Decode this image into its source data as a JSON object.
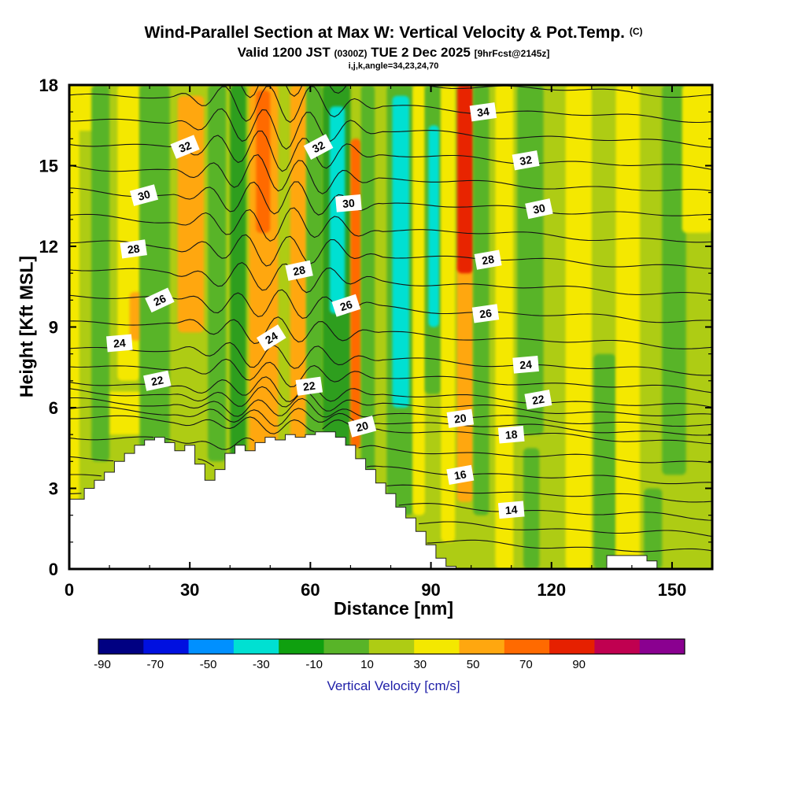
{
  "header": {
    "title": "Wind-Parallel Section at Max W: Vertical Velocity & Pot.Temp.",
    "title_unit": "(C)",
    "valid": "Valid 1200 JST",
    "valid_z": "(0300Z)",
    "date": "TUE 2 Dec 2025",
    "fcst": "[9hrFcst@2145z]",
    "ijk": "i,j,k,angle=34,23,24,70"
  },
  "chart_data": {
    "type": "heatmap",
    "title": "Wind-Parallel Section at Max W: Vertical Velocity & Pot.Temp. (C)",
    "subtitle": "Valid 1200 JST (0300Z) TUE 2 Dec 2025 [9hrFcst@2145z]",
    "xlabel": "Distance [nm]",
    "ylabel": "Height [Kft MSL]",
    "xlim": [
      0,
      160
    ],
    "ylim": [
      0,
      18
    ],
    "x_ticks": [
      0,
      30,
      60,
      90,
      120,
      150
    ],
    "y_ticks": [
      0,
      3,
      6,
      9,
      12,
      15,
      18
    ],
    "fill_field": "vertical velocity",
    "contour_field": "potential temperature (C), 1 C interval",
    "colorbar": {
      "label": "Vertical Velocity [cm/s]",
      "label_color": "#2020A8",
      "ticks": [
        -90,
        -70,
        -50,
        -30,
        -10,
        10,
        30,
        50,
        70,
        90
      ],
      "colors": [
        "#000082",
        "#0010E0",
        "#0090FF",
        "#00E0D2",
        "#0FA00F",
        "#58B428",
        "#AECC14",
        "#F4E800",
        "#FFA70F",
        "#FF6A00",
        "#E62000",
        "#C00050",
        "#8A0090"
      ]
    },
    "background": "#AECC14",
    "palette": {
      "yellow": "#F4E800",
      "green": "#58B428",
      "dkgreen": "#2E9E1E",
      "cyan": "#00E0D2",
      "orange": "#FFA70F",
      "redorange": "#FF6A00",
      "red": "#E82400"
    },
    "bands": [
      [
        0,
        2.5,
        2.5,
        18,
        "yellow"
      ],
      [
        0,
        9,
        16.3,
        18,
        "yellow"
      ],
      [
        6,
        20,
        5,
        6.6,
        "yellow"
      ],
      [
        5.5,
        10,
        4,
        18,
        "green"
      ],
      [
        12,
        17.5,
        7,
        18,
        "yellow"
      ],
      [
        15,
        19,
        8.5,
        10.3,
        "orange"
      ],
      [
        17.5,
        25,
        4.5,
        18,
        "green"
      ],
      [
        27,
        33.5,
        8.8,
        17.6,
        "orange"
      ],
      [
        34.5,
        39,
        4,
        18,
        "green"
      ],
      [
        40,
        44,
        4,
        18,
        "dkgreen"
      ],
      [
        44.8,
        52,
        4,
        18,
        "orange"
      ],
      [
        46.5,
        50,
        12.5,
        17.8,
        "redorange"
      ],
      [
        55,
        59,
        4,
        18,
        "orange"
      ],
      [
        59,
        63,
        4.5,
        18,
        "green"
      ],
      [
        63,
        70,
        4,
        18,
        "dkgreen"
      ],
      [
        64.8,
        68.6,
        9.5,
        17.2,
        "cyan"
      ],
      [
        70,
        72.6,
        4.5,
        16,
        "redorange"
      ],
      [
        72.6,
        76,
        3.5,
        18,
        "green"
      ],
      [
        79,
        85.5,
        2,
        18,
        "green"
      ],
      [
        80.4,
        84.6,
        6,
        17.6,
        "cyan"
      ],
      [
        85.5,
        88.5,
        2,
        18,
        "yellow"
      ],
      [
        88.5,
        92.5,
        6.5,
        18,
        "green"
      ],
      [
        89.4,
        92,
        9,
        16.5,
        "cyan"
      ],
      [
        92.5,
        96,
        1,
        18,
        "yellow"
      ],
      [
        96.5,
        100.5,
        2.5,
        11.5,
        "orange"
      ],
      [
        96.5,
        100.5,
        11,
        18,
        "red"
      ],
      [
        100.5,
        104.5,
        2,
        18,
        "green"
      ],
      [
        106,
        110.5,
        0,
        18,
        "yellow"
      ],
      [
        111.5,
        118,
        5,
        18,
        "green"
      ],
      [
        113,
        117,
        0,
        4.5,
        "green"
      ],
      [
        123.5,
        130,
        0,
        18,
        "yellow"
      ],
      [
        130.5,
        136,
        0,
        8,
        "green"
      ],
      [
        136,
        142,
        0,
        18,
        "yellow"
      ],
      [
        143,
        147.5,
        0,
        3,
        "green"
      ],
      [
        147.5,
        153.5,
        3.5,
        18,
        "green"
      ],
      [
        152.5,
        160,
        12.5,
        18,
        "yellow"
      ]
    ],
    "terrain": {
      "dx_nm": 2.5,
      "heights_kft": [
        2.6,
        2.6,
        3.0,
        3.3,
        3.6,
        4.0,
        4.3,
        4.6,
        4.8,
        4.9,
        4.7,
        4.4,
        4.6,
        3.9,
        3.3,
        3.7,
        4.3,
        4.6,
        4.4,
        4.7,
        4.9,
        4.8,
        5.0,
        4.9,
        5.0,
        5.1,
        5.1,
        4.9,
        4.6,
        4.1,
        3.7,
        3.2,
        2.8,
        2.3,
        1.9,
        1.4,
        0.9,
        0.4,
        0.1,
        0,
        0,
        0,
        0,
        0,
        0,
        0,
        0,
        0,
        0,
        0,
        0,
        0,
        0,
        0,
        0.5,
        0.5,
        0.5,
        0.5,
        0.3,
        0,
        0,
        0,
        0,
        0,
        0
      ]
    },
    "contours": {
      "interval": 1,
      "labeled_levels": [
        14,
        16,
        18,
        20,
        22,
        24,
        26,
        28,
        30,
        32,
        34
      ],
      "levels": [
        {
          "t": 12,
          "h": 0.9
        },
        {
          "t": 13,
          "h": 1.55
        },
        {
          "t": 14,
          "h": 2.2
        },
        {
          "t": 15,
          "h": 2.85
        },
        {
          "t": 16,
          "h": 3.5
        },
        {
          "t": 17,
          "h": 4.25
        },
        {
          "t": 18,
          "h": 5.0
        },
        {
          "t": 19,
          "h": 5.3
        },
        {
          "t": 20,
          "h": 5.6
        },
        {
          "t": 21,
          "h": 5.95
        },
        {
          "t": 22,
          "h": 6.3
        },
        {
          "t": 23,
          "h": 6.95
        },
        {
          "t": 24,
          "h": 7.6
        },
        {
          "t": 25,
          "h": 8.55
        },
        {
          "t": 26,
          "h": 9.5
        },
        {
          "t": 27,
          "h": 10.5
        },
        {
          "t": 28,
          "h": 11.5
        },
        {
          "t": 29,
          "h": 12.45
        },
        {
          "t": 30,
          "h": 13.4
        },
        {
          "t": 31,
          "h": 14.3
        },
        {
          "t": 32,
          "h": 15.2
        },
        {
          "t": 33,
          "h": 16.1
        },
        {
          "t": 34,
          "h": 17.0
        },
        {
          "t": 35,
          "h": 17.9
        }
      ]
    },
    "contour_labels": [
      {
        "v": "34",
        "x": 103,
        "k": 17.0,
        "r": -8
      },
      {
        "v": "32",
        "x": 28.8,
        "k": 15.7,
        "r": -22
      },
      {
        "v": "32",
        "x": 62,
        "k": 15.7,
        "r": -28
      },
      {
        "v": "32",
        "x": 113.6,
        "k": 15.2,
        "r": -10
      },
      {
        "v": "30",
        "x": 18.6,
        "k": 13.9,
        "r": -15
      },
      {
        "v": "30",
        "x": 69.5,
        "k": 13.6,
        "r": -5
      },
      {
        "v": "30",
        "x": 116.9,
        "k": 13.4,
        "r": -12
      },
      {
        "v": "28",
        "x": 16,
        "k": 11.9,
        "r": -8
      },
      {
        "v": "28",
        "x": 57.2,
        "k": 11.1,
        "r": -12
      },
      {
        "v": "28",
        "x": 104.2,
        "k": 11.5,
        "r": -10
      },
      {
        "v": "26",
        "x": 22.5,
        "k": 10.0,
        "r": -25
      },
      {
        "v": "26",
        "x": 68.9,
        "k": 9.8,
        "r": -18
      },
      {
        "v": "26",
        "x": 103.6,
        "k": 9.5,
        "r": -8
      },
      {
        "v": "24",
        "x": 12.5,
        "k": 8.4,
        "r": -5
      },
      {
        "v": "24",
        "x": 50.3,
        "k": 8.6,
        "r": -32
      },
      {
        "v": "24",
        "x": 113.6,
        "k": 7.6,
        "r": -5
      },
      {
        "v": "22",
        "x": 21.9,
        "k": 7.0,
        "r": -12
      },
      {
        "v": "22",
        "x": 59.7,
        "k": 6.8,
        "r": -8
      },
      {
        "v": "22",
        "x": 116.7,
        "k": 6.3,
        "r": -10
      },
      {
        "v": "20",
        "x": 72.9,
        "k": 5.3,
        "r": -15
      },
      {
        "v": "20",
        "x": 97.3,
        "k": 5.6,
        "r": -8
      },
      {
        "v": "18",
        "x": 110,
        "k": 5.0,
        "r": -5
      },
      {
        "v": "16",
        "x": 97.3,
        "k": 3.5,
        "r": -10
      },
      {
        "v": "14",
        "x": 110,
        "k": 2.2,
        "r": -5
      }
    ]
  }
}
